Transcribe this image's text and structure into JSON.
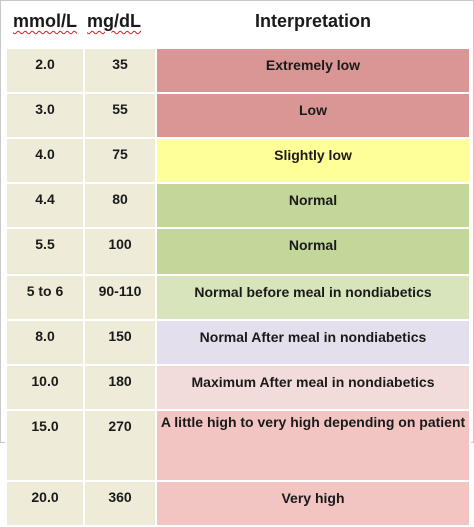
{
  "table": {
    "headers": {
      "mmol": "mmol/L",
      "mgdl": "mg/dL",
      "interpretation": "Interpretation"
    },
    "rows": [
      {
        "mmol": "2.0",
        "mgdl": "35",
        "interpretation": "Extremely low",
        "color": "#da9694"
      },
      {
        "mmol": "3.0",
        "mgdl": "55",
        "interpretation": "Low",
        "color": "#da9694"
      },
      {
        "mmol": "4.0",
        "mgdl": "75",
        "interpretation": "Slightly low",
        "color": "#ffff99"
      },
      {
        "mmol": "4.4",
        "mgdl": "80",
        "interpretation": "Normal",
        "color": "#c4d79b"
      },
      {
        "mmol": "5.5",
        "mgdl": "100",
        "interpretation": "Normal",
        "color": "#c4d79b"
      },
      {
        "mmol": "5 to 6",
        "mgdl": "90-110",
        "interpretation": "Normal before meal in nondiabetics",
        "color": "#d8e4bc"
      },
      {
        "mmol": "8.0",
        "mgdl": "150",
        "interpretation": "Normal After meal in nondiabetics",
        "color": "#e4dfec"
      },
      {
        "mmol": "10.0",
        "mgdl": "180",
        "interpretation": "Maximum After meal in nondiabetics",
        "color": "#f2dcdb"
      },
      {
        "mmol": "15.0",
        "mgdl": "270",
        "interpretation": "A little high to very high depending on patient",
        "color": "#f2c4c2"
      },
      {
        "mmol": "20.0",
        "mgdl": "360",
        "interpretation": "Very high",
        "color": "#f2c4c2"
      }
    ]
  }
}
